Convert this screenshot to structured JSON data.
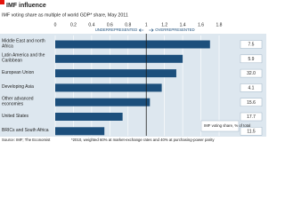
{
  "chart_data": {
    "type": "bar",
    "orientation": "horizontal",
    "title": "IMF influence",
    "subtitle": "IMF voting share as multiple of world GDP* share, May 2011",
    "categories": [
      "Middle East and north Africa",
      "Latin America and the Caribbean",
      "European Union",
      "Developing Asia",
      "Other advanced economies",
      "United States",
      "BRICs and South Africa"
    ],
    "values": [
      1.7,
      1.4,
      1.33,
      1.17,
      1.04,
      0.74,
      0.54
    ],
    "color": "#1c4f7c",
    "xlim": [
      0,
      1.8
    ],
    "xticks": [
      0,
      0.2,
      0.4,
      0.6,
      0.8,
      1,
      1.2,
      1.4,
      1.6,
      1.8
    ],
    "grid": true,
    "reference_line": 1,
    "left_label": "UNDERREPRESENTED",
    "right_label": "OVERREPRESENTED",
    "shares": {
      "title": "IMF voting share, % of total",
      "values": [
        7.5,
        5.9,
        32,
        4.1,
        15.6,
        17.7,
        11.5
      ],
      "value_labels": [
        "7.5",
        "5.9",
        "32.0",
        "4.1",
        "15.6",
        "17.7",
        "11.5"
      ]
    },
    "source": "Source: IMF; The Economist",
    "footnote": "*2010, weighted 60% at market-exchange rates and 40% at purchasing-power parity"
  }
}
